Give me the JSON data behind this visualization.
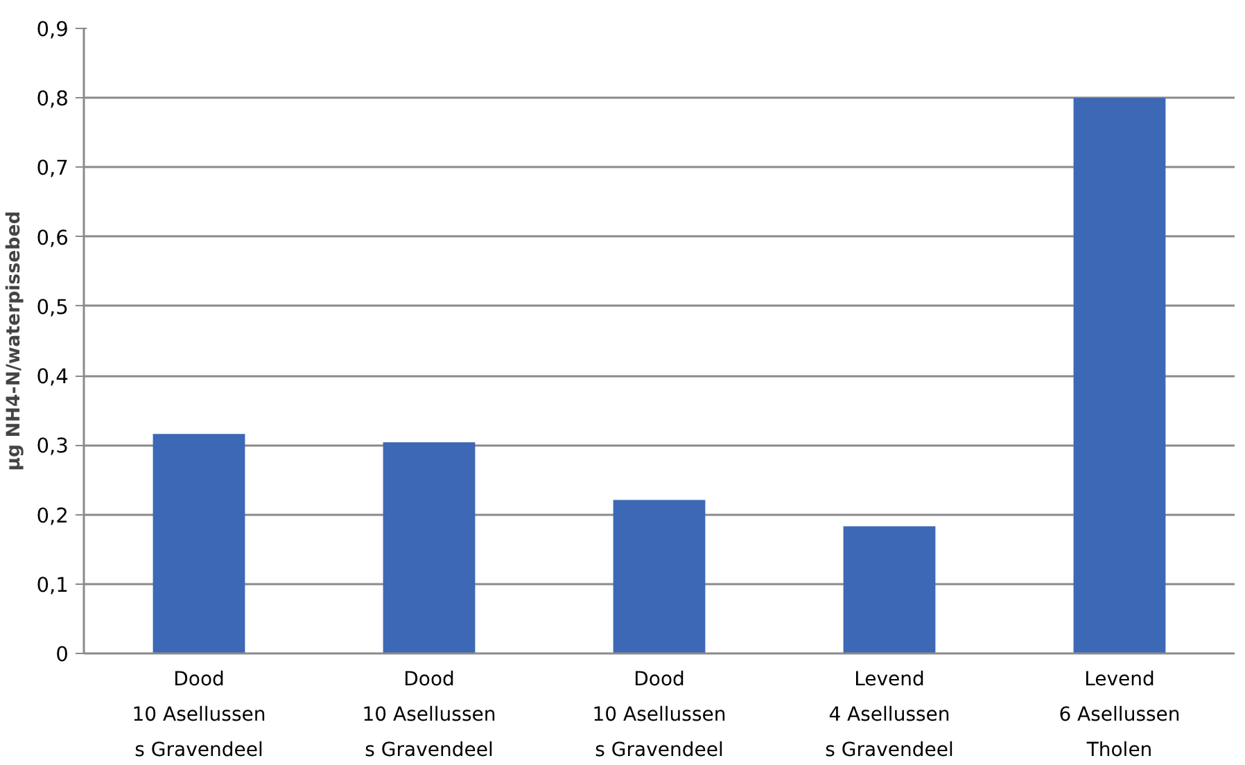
{
  "chart_data": {
    "type": "bar",
    "ylabel": "µg NH4-N/waterpissebed",
    "categories": [
      "Dood\n10 Asellussen\ns Gravendeel",
      "Dood\n10 Asellussen\ns Gravendeel",
      "Dood\n10 Asellussen\ns Gravendeel",
      "Levend\n4 Asellussen\ns Gravendeel",
      "Levend\n6 Asellussen\nTholen"
    ],
    "values": [
      0.316,
      0.304,
      0.221,
      0.183,
      0.8
    ],
    "color": "#3c68b5",
    "ylim": [
      0,
      0.9
    ],
    "yticks": [
      {
        "value": 0,
        "label": "0"
      },
      {
        "value": 0.1,
        "label": "0,1"
      },
      {
        "value": 0.2,
        "label": "0,2"
      },
      {
        "value": 0.3,
        "label": "0,3"
      },
      {
        "value": 0.4,
        "label": "0,4"
      },
      {
        "value": 0.5,
        "label": "0,5"
      },
      {
        "value": 0.6,
        "label": "0,6"
      },
      {
        "value": 0.7,
        "label": "0,7"
      },
      {
        "value": 0.8,
        "label": "0,8"
      },
      {
        "value": 0.9,
        "label": "0,9"
      }
    ],
    "grid": "y"
  }
}
